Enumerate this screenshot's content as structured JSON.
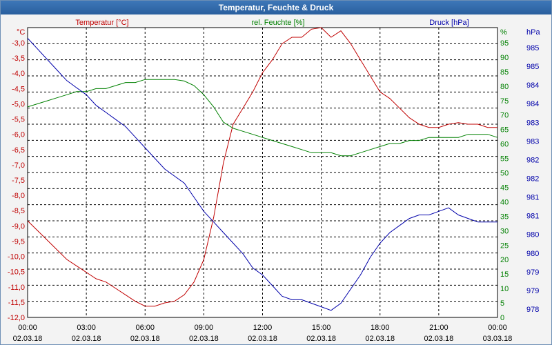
{
  "window": {
    "title": "Temperatur, Feuchte & Druck"
  },
  "chart_data": {
    "type": "line",
    "title": "Temperatur, Feuchte & Druck",
    "x_ticks": [
      {
        "time": "00:00",
        "date": "02.03.18"
      },
      {
        "time": "03:00",
        "date": "02.03.18"
      },
      {
        "time": "06:00",
        "date": "02.03.18"
      },
      {
        "time": "09:00",
        "date": "02.03.18"
      },
      {
        "time": "12:00",
        "date": "02.03.18"
      },
      {
        "time": "15:00",
        "date": "02.03.18"
      },
      {
        "time": "18:00",
        "date": "02.03.18"
      },
      {
        "time": "21:00",
        "date": "02.03.18"
      },
      {
        "time": "00:00",
        "date": "03.03.18"
      }
    ],
    "xlim": [
      "02.03.18 00:00",
      "03.03.18 00:00"
    ],
    "grid": true,
    "axes": {
      "temperature": {
        "label": "Temperatur [°C]",
        "unit": "°C",
        "ylim": [
          -12.0,
          -3.0
        ],
        "color": "#c00000",
        "ticks": [
          "-3,0",
          "-3,5",
          "-4,0",
          "-4,5",
          "-5,0",
          "-5,5",
          "-6,0",
          "-6,5",
          "-7,0",
          "-7,5",
          "-8,0",
          "-8,5",
          "-9,0",
          "-9,5",
          "-10,0",
          "-10,5",
          "-11,0",
          "-11,5",
          "-12,0"
        ]
      },
      "humidity": {
        "label": "rel. Feuchte [%]",
        "unit": "%",
        "ylim": [
          0,
          95
        ],
        "color": "#008000",
        "ticks": [
          "95",
          "90",
          "85",
          "80",
          "75",
          "70",
          "65",
          "60",
          "55",
          "50",
          "45",
          "40",
          "35",
          "30",
          "25",
          "20",
          "15",
          "10",
          "5",
          "0"
        ]
      },
      "pressure": {
        "label": "Druck [hPa]",
        "unit": "hPa",
        "ylim": [
          977.6,
          985.8
        ],
        "color": "#0000aa",
        "ticks": [
          "985",
          "985",
          "984",
          "984",
          "983",
          "983",
          "982",
          "982",
          "981",
          "981",
          "980",
          "980",
          "979",
          "979",
          "978"
        ]
      }
    },
    "series": [
      {
        "name": "Temperatur [°C]",
        "axis": "temperature",
        "color": "#c00000",
        "x_hours": [
          0,
          0.5,
          1,
          1.5,
          2,
          2.5,
          3,
          3.5,
          4,
          4.5,
          5,
          5.5,
          6,
          6.5,
          7,
          7.5,
          8,
          8.5,
          9,
          9.5,
          10,
          10.5,
          11,
          11.5,
          12,
          12.5,
          13,
          13.5,
          14,
          14.5,
          15,
          15.5,
          16,
          16.5,
          17,
          17.5,
          18,
          18.5,
          19,
          19.5,
          20,
          20.5,
          21,
          21.5,
          22,
          22.5,
          23,
          23.5,
          24
        ],
        "values": [
          -9.0,
          -9.3,
          -9.6,
          -9.9,
          -10.2,
          -10.4,
          -10.6,
          -10.8,
          -10.9,
          -11.1,
          -11.3,
          -11.5,
          -11.65,
          -11.65,
          -11.55,
          -11.5,
          -11.3,
          -10.9,
          -10.2,
          -8.9,
          -7.2,
          -6.0,
          -5.5,
          -5.0,
          -4.4,
          -4.0,
          -3.5,
          -3.3,
          -3.3,
          -3.05,
          -3.0,
          -3.3,
          -3.1,
          -3.5,
          -4.0,
          -4.5,
          -5.0,
          -5.2,
          -5.5,
          -5.8,
          -6.0,
          -6.1,
          -6.1,
          -6.0,
          -5.95,
          -6.0,
          -6.0,
          -6.1,
          -6.1
        ]
      },
      {
        "name": "rel. Feuchte [%]",
        "axis": "humidity",
        "color": "#008000",
        "x_hours": [
          0,
          0.5,
          1,
          1.5,
          2,
          2.5,
          3,
          3.5,
          4,
          4.5,
          5,
          5.5,
          6,
          6.5,
          7,
          7.5,
          8,
          8.5,
          9,
          9.5,
          10,
          10.5,
          11,
          11.5,
          12,
          12.5,
          13,
          13.5,
          14,
          14.5,
          15,
          15.5,
          16,
          16.5,
          17,
          17.5,
          18,
          18.5,
          19,
          19.5,
          20,
          20.5,
          21,
          21.5,
          22,
          22.5,
          23,
          23.5,
          24
        ],
        "values": [
          69,
          70,
          71,
          72,
          73,
          74,
          74,
          75,
          75,
          76,
          77,
          77,
          78,
          78,
          78,
          78,
          77.5,
          76,
          73,
          69,
          64,
          62,
          61,
          60,
          59,
          58,
          57,
          56,
          55,
          54,
          54,
          54,
          53,
          53,
          54,
          55,
          56,
          57,
          57,
          58,
          58,
          59,
          59,
          59,
          59,
          60,
          60,
          60,
          59
        ]
      },
      {
        "name": "Druck [hPa]",
        "axis": "pressure",
        "color": "#0000aa",
        "x_hours": [
          0,
          0.5,
          1,
          1.5,
          2,
          2.5,
          3,
          3.5,
          4,
          4.5,
          5,
          5.5,
          6,
          6.5,
          7,
          7.5,
          8,
          8.5,
          9,
          9.5,
          10,
          10.5,
          11,
          11.5,
          12,
          12.5,
          13,
          13.5,
          14,
          14.5,
          15,
          15.5,
          16,
          16.5,
          17,
          17.5,
          18,
          18.5,
          19,
          19.5,
          20,
          20.5,
          21,
          21.5,
          22,
          22.5,
          23,
          23.5,
          24
        ],
        "values": [
          985.5,
          985.2,
          984.9,
          984.6,
          984.3,
          984.1,
          983.9,
          983.6,
          983.4,
          983.2,
          983.0,
          982.7,
          982.4,
          982.1,
          981.8,
          981.6,
          981.4,
          981.0,
          980.6,
          980.3,
          980.0,
          979.7,
          979.4,
          979.0,
          978.8,
          978.5,
          978.2,
          978.1,
          978.1,
          978.0,
          977.9,
          977.8,
          978.0,
          978.4,
          978.8,
          979.3,
          979.7,
          980.0,
          980.2,
          980.4,
          980.5,
          980.5,
          980.6,
          980.7,
          980.5,
          980.4,
          980.3,
          980.3,
          980.3
        ]
      }
    ]
  }
}
